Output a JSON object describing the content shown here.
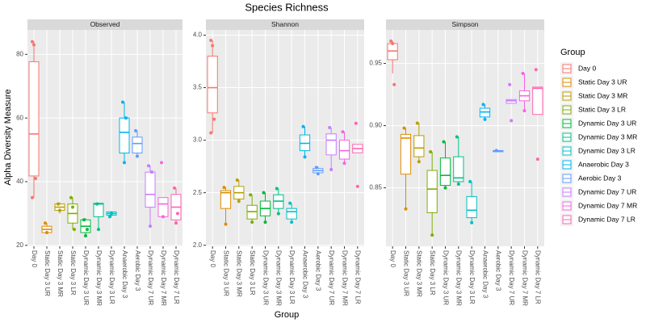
{
  "title": "Species Richness",
  "x_label": "Group",
  "y_label": "Alpha Diversity Measure",
  "legend_title": "Group",
  "chart_data": [
    {
      "type": "box",
      "title": "Observed",
      "categories": [
        "Day 0",
        "Static Day 3 UR",
        "Static Day 3 MR",
        "Static Day 3 LR",
        "Dynamic Day 3 UR",
        "Dynamic Day 3 MR",
        "Dynamic Day 3 LR",
        "Anaerobic Day 3",
        "Aerobic Day 3",
        "Dynamic Day 7 UR",
        "Dynamic Day 7 MR",
        "Dynamic Day 7 LR"
      ],
      "colors": [
        "#F8766D",
        "#DE8C00",
        "#B79F00",
        "#7CAE00",
        "#00BA38",
        "#00C08B",
        "#00BFC4",
        "#00B4F0",
        "#619CFF",
        "#C77CFF",
        "#F564E3",
        "#FF64B0"
      ],
      "boxes": [
        {
          "min": 35,
          "q1": 41.8,
          "median": 55,
          "q3": 77.7,
          "max": 84,
          "points": [
            84,
            83,
            41,
            35
          ]
        },
        {
          "min": 23.5,
          "q1": 24,
          "median": 25,
          "q3": 26,
          "max": 27,
          "points": [
            27,
            24
          ]
        },
        {
          "min": 30,
          "q1": 31,
          "median": 32,
          "q3": 33,
          "max": 33.5,
          "points": [
            33,
            31
          ]
        },
        {
          "min": 25,
          "q1": 27,
          "median": 30,
          "q3": 33,
          "max": 35,
          "points": [
            35,
            32,
            25
          ]
        },
        {
          "min": 23,
          "q1": 24,
          "median": 26,
          "q3": 28,
          "max": 28.5,
          "points": [
            28,
            23,
            25
          ]
        },
        {
          "min": 25,
          "q1": 29,
          "median": 33,
          "q3": 33.2,
          "max": 33.5,
          "points": [
            33,
            25
          ]
        },
        {
          "min": 29,
          "q1": 29.5,
          "median": 30,
          "q3": 30.5,
          "max": 30.8,
          "points": [
            29,
            30
          ]
        },
        {
          "min": 46,
          "q1": 49,
          "median": 55.5,
          "q3": 60,
          "max": 65,
          "points": [
            65,
            46,
            60
          ]
        },
        {
          "min": 48,
          "q1": 49,
          "median": 52,
          "q3": 54,
          "max": 56,
          "points": [
            56,
            48
          ]
        },
        {
          "min": 26,
          "q1": 32,
          "median": 36,
          "q3": 43,
          "max": 45,
          "points": [
            45,
            26,
            43
          ]
        },
        {
          "min": 29,
          "q1": 29,
          "median": 33,
          "q3": 35,
          "max": 35,
          "points": [
            46,
            29
          ]
        },
        {
          "min": 27,
          "q1": 28,
          "median": 32,
          "q3": 36,
          "max": 38,
          "points": [
            38,
            27,
            30
          ]
        }
      ],
      "ylim": [
        19.7,
        87.7
      ],
      "yticks": [
        20,
        40,
        60,
        80
      ],
      "grid": true
    },
    {
      "type": "box",
      "title": "Shannon",
      "categories": [
        "Day 0",
        "Static Day 3 UR",
        "Static Day 3 MR",
        "Static Day 3 LR",
        "Dynamic Day 3 UR",
        "Dynamic Day 3 MR",
        "Dynamic Day 3 LR",
        "Anaerobic Day 3",
        "Aerobic Day 3",
        "Dynamic Day 7 UR",
        "Dynamic Day 7 MR",
        "Dynamic Day 7 LR"
      ],
      "colors": [
        "#F8766D",
        "#DE8C00",
        "#B79F00",
        "#7CAE00",
        "#00BA38",
        "#00C08B",
        "#00BFC4",
        "#00B4F0",
        "#619CFF",
        "#C77CFF",
        "#F564E3",
        "#FF64B0"
      ],
      "boxes": [
        {
          "min": 3.07,
          "q1": 3.26,
          "median": 3.5,
          "q3": 3.8,
          "max": 3.95,
          "points": [
            3.95,
            3.9,
            3.2,
            3.07
          ]
        },
        {
          "min": 2.2,
          "q1": 2.35,
          "median": 2.5,
          "q3": 2.52,
          "max": 2.55,
          "points": [
            2.55,
            2.2
          ]
        },
        {
          "min": 2.4,
          "q1": 2.44,
          "median": 2.5,
          "q3": 2.56,
          "max": 2.62,
          "points": [
            2.62,
            2.42
          ]
        },
        {
          "min": 2.22,
          "q1": 2.25,
          "median": 2.32,
          "q3": 2.38,
          "max": 2.48,
          "points": [
            2.48,
            2.22
          ]
        },
        {
          "min": 2.22,
          "q1": 2.28,
          "median": 2.35,
          "q3": 2.42,
          "max": 2.5,
          "points": [
            2.5,
            2.22
          ]
        },
        {
          "min": 2.3,
          "q1": 2.35,
          "median": 2.42,
          "q3": 2.48,
          "max": 2.54,
          "points": [
            2.54,
            2.3
          ]
        },
        {
          "min": 2.22,
          "q1": 2.25,
          "median": 2.32,
          "q3": 2.35,
          "max": 2.4,
          "points": [
            2.4,
            2.22
          ]
        },
        {
          "min": 2.84,
          "q1": 2.9,
          "median": 2.97,
          "q3": 3.05,
          "max": 3.13,
          "points": [
            3.13,
            2.84
          ]
        },
        {
          "min": 2.67,
          "q1": 2.69,
          "median": 2.71,
          "q3": 2.73,
          "max": 2.75,
          "points": [
            2.74,
            2.68
          ]
        },
        {
          "min": 2.72,
          "q1": 2.86,
          "median": 3.0,
          "q3": 3.06,
          "max": 3.12,
          "points": [
            3.12,
            2.72
          ]
        },
        {
          "min": 2.78,
          "q1": 2.82,
          "median": 2.9,
          "q3": 3.0,
          "max": 3.08,
          "points": [
            3.08,
            2.78
          ]
        },
        {
          "min": 2.88,
          "q1": 2.88,
          "median": 2.92,
          "q3": 2.96,
          "max": 2.96,
          "points": [
            3.16,
            2.56
          ]
        }
      ],
      "ylim": [
        1.99,
        4.05
      ],
      "yticks": [
        {
          "value": 2,
          "label": "2.0"
        },
        2.5,
        {
          "value": 3,
          "label": "3.0"
        },
        3.5,
        {
          "value": 4,
          "label": "4.0"
        }
      ],
      "grid": true
    },
    {
      "type": "box",
      "title": "Simpson",
      "categories": [
        "Day 0",
        "Static Day 3 UR",
        "Static Day 3 MR",
        "Static Day 3 LR",
        "Dynamic Day 3 UR",
        "Dynamic Day 3 MR",
        "Dynamic Day 3 LR",
        "Anaerobic Day 3",
        "Aerobic Day 3",
        "Dynamic Day 7 UR",
        "Dynamic Day 7 MR",
        "Dynamic Day 7 LR"
      ],
      "colors": [
        "#F8766D",
        "#DE8C00",
        "#B79F00",
        "#7CAE00",
        "#00BA38",
        "#00C08B",
        "#00BFC4",
        "#00B4F0",
        "#619CFF",
        "#C77CFF",
        "#F564E3",
        "#FF64B0"
      ],
      "boxes": [
        {
          "min": 0.942,
          "q1": 0.953,
          "median": 0.96,
          "q3": 0.966,
          "max": 0.968,
          "points": [
            0.968,
            0.966,
            0.933
          ]
        },
        {
          "min": 0.833,
          "q1": 0.861,
          "median": 0.89,
          "q3": 0.893,
          "max": 0.898,
          "points": [
            0.898,
            0.833
          ]
        },
        {
          "min": 0.87,
          "q1": 0.875,
          "median": 0.882,
          "q3": 0.892,
          "max": 0.902,
          "points": [
            0.902,
            0.871
          ]
        },
        {
          "min": 0.812,
          "q1": 0.83,
          "median": 0.849,
          "q3": 0.864,
          "max": 0.879,
          "points": [
            0.879,
            0.812
          ]
        },
        {
          "min": 0.85,
          "q1": 0.852,
          "median": 0.86,
          "q3": 0.874,
          "max": 0.887,
          "points": [
            0.887,
            0.85
          ]
        },
        {
          "min": 0.853,
          "q1": 0.855,
          "median": 0.858,
          "q3": 0.875,
          "max": 0.891,
          "points": [
            0.891,
            0.853
          ]
        },
        {
          "min": 0.822,
          "q1": 0.826,
          "median": 0.832,
          "q3": 0.843,
          "max": 0.855,
          "points": [
            0.855,
            0.822
          ]
        },
        {
          "min": 0.905,
          "q1": 0.907,
          "median": 0.911,
          "q3": 0.914,
          "max": 0.917,
          "points": [
            0.917,
            0.905
          ]
        },
        {
          "min": 0.879,
          "q1": 0.879,
          "median": 0.8795,
          "q3": 0.88,
          "max": 0.88,
          "points": [
            0.88
          ]
        },
        {
          "min": 0.918,
          "q1": 0.918,
          "median": 0.92,
          "q3": 0.921,
          "max": 0.921,
          "points": [
            0.933,
            0.904
          ]
        },
        {
          "min": 0.912,
          "q1": 0.92,
          "median": 0.924,
          "q3": 0.928,
          "max": 0.942,
          "points": [
            0.942,
            0.912
          ]
        },
        {
          "min": 0.909,
          "q1": 0.909,
          "median": 0.93,
          "q3": 0.931,
          "max": 0.931,
          "points": [
            0.945,
            0.873
          ]
        }
      ],
      "ylim": [
        0.803,
        0.977
      ],
      "yticks": [
        0.85,
        {
          "value": 0.9,
          "label": "0.90"
        },
        0.95
      ],
      "grid": true
    }
  ]
}
